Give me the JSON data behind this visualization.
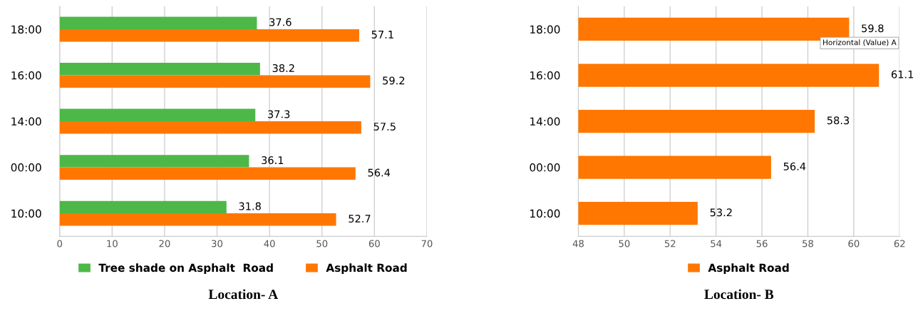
{
  "chart_data": [
    {
      "type": "bar",
      "orientation": "horizontal",
      "title": "Location- A",
      "categories": [
        "18:00",
        "16:00",
        "14:00",
        "00:00",
        "10:00"
      ],
      "series": [
        {
          "name": "Tree shade on Asphalt  Road",
          "color": "#4db848",
          "values": [
            37.6,
            38.2,
            37.3,
            36.1,
            31.8
          ]
        },
        {
          "name": "Asphalt Road",
          "color": "#ff7700",
          "values": [
            57.1,
            59.2,
            57.5,
            56.4,
            52.7
          ]
        }
      ],
      "xlim": [
        0,
        70
      ],
      "xticks": [
        0,
        10,
        20,
        30,
        40,
        50,
        60,
        70
      ],
      "grid": "x",
      "legend": "bottom",
      "data_labels": true
    },
    {
      "type": "bar",
      "orientation": "horizontal",
      "title": "Location- B",
      "categories": [
        "18:00",
        "16:00",
        "14:00",
        "00:00",
        "10:00"
      ],
      "series": [
        {
          "name": "Asphalt Road",
          "color": "#ff7700",
          "values": [
            59.8,
            61.1,
            58.3,
            56.4,
            53.2
          ]
        }
      ],
      "xlim": [
        48,
        62
      ],
      "xticks": [
        48,
        50,
        52,
        54,
        56,
        58,
        60,
        62
      ],
      "grid": "x",
      "legend": "bottom",
      "data_labels": true,
      "annotations": [
        "Horizontal (Value) A"
      ]
    }
  ]
}
